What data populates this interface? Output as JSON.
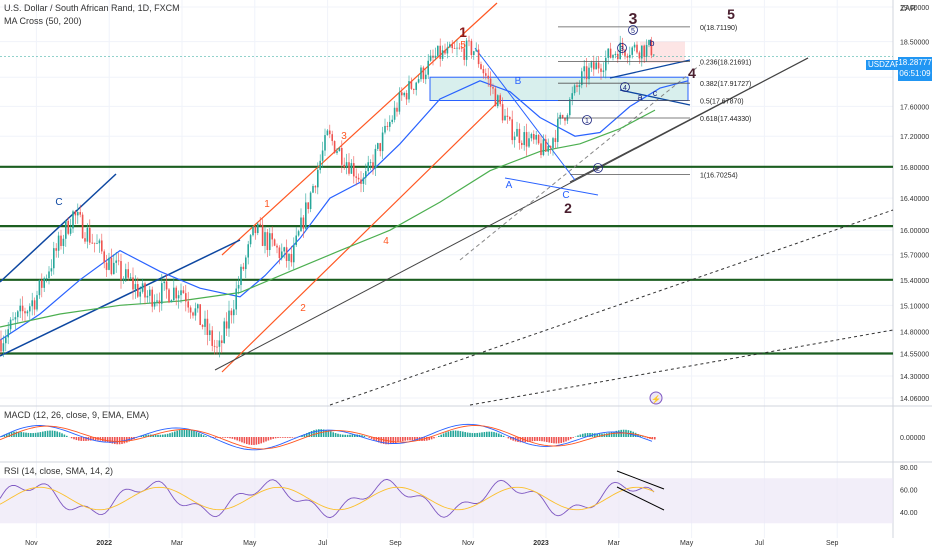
{
  "header": {
    "title": "U.S. Dollar / South African Rand, 1D, FXCM",
    "ma_label": "MA Cross (50, 200)",
    "currency": "ZAR"
  },
  "price_tag": {
    "symbol": "USDZAR",
    "price": "18.28777",
    "countdown": "06:51:09"
  },
  "panels": {
    "macd_label": "MACD (12, 26, close, 9, EMA, EMA)",
    "rsi_label": "RSI (14, close, SMA, 14, 2)"
  },
  "colors": {
    "up": "#26a69a",
    "down": "#ef5350",
    "ma50": "#2962ff",
    "ma200": "#4caf50",
    "channel": "#ff5722",
    "support": "#1b5e20",
    "navy": "#0d47a1",
    "rsi": "#7e57c2",
    "rsi_ma": "#fbc02d",
    "tag": "#2196f3"
  },
  "annotations": {
    "wave_top_1": "1",
    "wave_top_5": "5",
    "wave_3_big": "3",
    "wave_5_big": "5",
    "wave_2_big": "2",
    "wave_4_big": "4",
    "w1": "1",
    "w2": "2",
    "w3": "3",
    "w4": "4",
    "A": "A",
    "B": "B",
    "C_low": "C",
    "C_left": "C",
    "c1": "1",
    "c2": "2",
    "c3": "3",
    "c4": "4",
    "c5": "5",
    "a": "a",
    "b": "b",
    "c": "c",
    "ghost": "⚡"
  },
  "chart_data": {
    "type": "candlestick",
    "title": "U.S. Dollar / South African Rand, 1D, FXCM",
    "symbol": "USDZAR",
    "last_price": 18.28777,
    "y_axis": {
      "unit": "ZAR",
      "ticks": [
        "19.00000",
        "18.50000",
        "18.00000",
        "17.60000",
        "17.20000",
        "16.80000",
        "16.40000",
        "16.00000",
        "15.70000",
        "15.40000",
        "15.10000",
        "14.80000",
        "14.55000",
        "14.30000",
        "14.06000"
      ],
      "ylim": [
        14.06,
        19.0
      ],
      "scale": "log"
    },
    "x_axis": {
      "ticks": [
        "Nov",
        "2022",
        "Mar",
        "May",
        "Jul",
        "Sep",
        "Nov",
        "2023",
        "Mar",
        "May",
        "Jul",
        "Sep"
      ]
    },
    "price_path_approx": [
      [
        "Oct 2021",
        14.7
      ],
      [
        "Nov 2021",
        15.2
      ],
      [
        "Dec 2021",
        16.2
      ],
      [
        "Jan 2022",
        15.6
      ],
      [
        "Feb 2022",
        15.2
      ],
      [
        "Mar 2022",
        15.3
      ],
      [
        "Apr 2022",
        14.55
      ],
      [
        "May 2022",
        16.0
      ],
      [
        "Jun 2022",
        15.6
      ],
      [
        "Jul 2022",
        17.2
      ],
      [
        "Aug 2022",
        16.6
      ],
      [
        "Sep 2022",
        17.7
      ],
      [
        "Oct 2022",
        18.3
      ],
      [
        "Nov 2022",
        18.4
      ],
      [
        "Dec 2022",
        17.3
      ],
      [
        "Jan 2023",
        17.0
      ],
      [
        "Feb 2023",
        18.0
      ],
      [
        "Mar 2023",
        18.4
      ]
    ],
    "fibonacci": [
      {
        "level": "0",
        "value": "18.71190"
      },
      {
        "level": "0.236",
        "value": "18.21691"
      },
      {
        "level": "0.382",
        "value": "17.91727"
      },
      {
        "level": "0.5",
        "value": "17.67870"
      },
      {
        "level": "0.618",
        "value": "17.44330"
      },
      {
        "level": "1",
        "value": "16.70254"
      }
    ],
    "support_levels": [
      16.8,
      16.05,
      15.4,
      14.55
    ],
    "macd": {
      "zero_label": "0.00000"
    },
    "rsi": {
      "ticks": [
        "80.00",
        "60.00",
        "40.00"
      ],
      "band": [
        30,
        70
      ]
    }
  }
}
